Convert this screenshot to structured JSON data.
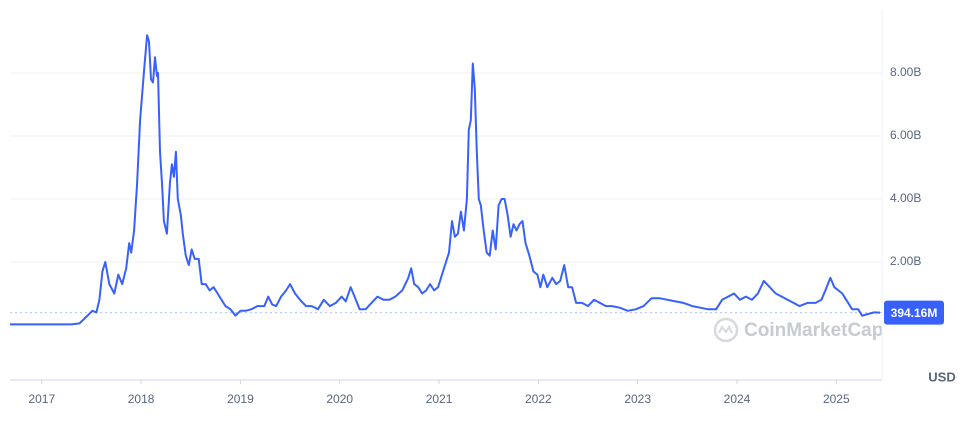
{
  "chart_data": {
    "type": "line",
    "x": [
      2016.68,
      2017.0,
      2017.3,
      2017.38,
      2017.46,
      2017.51,
      2017.55,
      2017.58,
      2017.61,
      2017.64,
      2017.68,
      2017.73,
      2017.77,
      2017.81,
      2017.85,
      2017.88,
      2017.9,
      2017.93,
      2017.96,
      2017.99,
      2018.03,
      2018.06,
      2018.08,
      2018.1,
      2018.12,
      2018.14,
      2018.16,
      2018.17,
      2018.19,
      2018.21,
      2018.23,
      2018.26,
      2018.29,
      2018.31,
      2018.33,
      2018.35,
      2018.37,
      2018.4,
      2018.42,
      2018.45,
      2018.48,
      2018.51,
      2018.54,
      2018.58,
      2018.61,
      2018.65,
      2018.69,
      2018.73,
      2018.77,
      2018.81,
      2018.85,
      2018.9,
      2018.95,
      2019.0,
      2019.05,
      2019.11,
      2019.17,
      2019.24,
      2019.28,
      2019.32,
      2019.36,
      2019.41,
      2019.46,
      2019.5,
      2019.55,
      2019.6,
      2019.66,
      2019.72,
      2019.78,
      2019.84,
      2019.9,
      2019.96,
      2020.02,
      2020.06,
      2020.11,
      2020.15,
      2020.2,
      2020.26,
      2020.32,
      2020.38,
      2020.44,
      2020.5,
      2020.56,
      2020.63,
      2020.69,
      2020.72,
      2020.75,
      2020.79,
      2020.83,
      2020.87,
      2020.91,
      2020.95,
      2020.99,
      2021.03,
      2021.07,
      2021.1,
      2021.13,
      2021.16,
      2021.19,
      2021.22,
      2021.25,
      2021.28,
      2021.3,
      2021.32,
      2021.34,
      2021.36,
      2021.38,
      2021.4,
      2021.42,
      2021.45,
      2021.48,
      2021.51,
      2021.54,
      2021.57,
      2021.6,
      2021.63,
      2021.66,
      2021.69,
      2021.72,
      2021.75,
      2021.78,
      2021.81,
      2021.84,
      2021.87,
      2021.91,
      2021.95,
      2021.99,
      2022.02,
      2022.05,
      2022.09,
      2022.14,
      2022.18,
      2022.22,
      2022.26,
      2022.3,
      2022.34,
      2022.38,
      2022.44,
      2022.5,
      2022.56,
      2022.62,
      2022.68,
      2022.74,
      2022.82,
      2022.9,
      2022.98,
      2023.06,
      2023.14,
      2023.22,
      2023.3,
      2023.38,
      2023.46,
      2023.55,
      2023.63,
      2023.71,
      2023.79,
      2023.85,
      2023.91,
      2023.97,
      2024.03,
      2024.09,
      2024.15,
      2024.21,
      2024.27,
      2024.33,
      2024.39,
      2024.45,
      2024.51,
      2024.57,
      2024.63,
      2024.71,
      2024.79,
      2024.85,
      2024.89,
      2024.94,
      2024.98,
      2025.02,
      2025.06,
      2025.1,
      2025.16,
      2025.22,
      2025.26,
      2025.32,
      2025.38,
      2025.44
    ],
    "series": [
      {
        "color": "#3861fb",
        "values": [
          0.02,
          0.02,
          0.02,
          0.05,
          0.3,
          0.45,
          0.4,
          0.8,
          1.7,
          2.0,
          1.3,
          1.0,
          1.6,
          1.3,
          1.8,
          2.6,
          2.3,
          3.0,
          4.5,
          6.5,
          8.1,
          9.2,
          9.0,
          7.8,
          7.7,
          8.5,
          7.9,
          8.0,
          5.5,
          4.5,
          3.3,
          2.9,
          4.5,
          5.1,
          4.7,
          5.5,
          4.0,
          3.5,
          2.9,
          2.2,
          1.9,
          2.4,
          2.1,
          2.1,
          1.3,
          1.3,
          1.1,
          1.2,
          1.0,
          0.8,
          0.6,
          0.5,
          0.3,
          0.45,
          0.45,
          0.5,
          0.6,
          0.6,
          0.9,
          0.65,
          0.6,
          0.9,
          1.1,
          1.3,
          1.0,
          0.8,
          0.6,
          0.6,
          0.5,
          0.8,
          0.6,
          0.7,
          0.9,
          0.75,
          1.2,
          0.9,
          0.5,
          0.5,
          0.7,
          0.9,
          0.8,
          0.8,
          0.9,
          1.1,
          1.5,
          1.8,
          1.3,
          1.2,
          1.0,
          1.1,
          1.3,
          1.1,
          1.2,
          1.6,
          2.0,
          2.3,
          3.3,
          2.8,
          2.9,
          3.6,
          3.0,
          4.0,
          6.2,
          6.5,
          8.3,
          7.5,
          5.5,
          4.0,
          3.8,
          3.0,
          2.3,
          2.2,
          3.0,
          2.4,
          3.8,
          4.0,
          4.0,
          3.5,
          2.8,
          3.2,
          3.0,
          3.2,
          3.3,
          2.6,
          2.2,
          1.7,
          1.6,
          1.2,
          1.6,
          1.2,
          1.5,
          1.3,
          1.4,
          1.9,
          1.2,
          1.2,
          0.7,
          0.7,
          0.6,
          0.8,
          0.7,
          0.6,
          0.6,
          0.55,
          0.45,
          0.5,
          0.6,
          0.85,
          0.85,
          0.8,
          0.75,
          0.7,
          0.6,
          0.55,
          0.5,
          0.5,
          0.8,
          0.9,
          1.0,
          0.8,
          0.9,
          0.8,
          1.0,
          1.4,
          1.2,
          1.0,
          0.9,
          0.8,
          0.7,
          0.6,
          0.7,
          0.7,
          0.8,
          1.1,
          1.5,
          1.2,
          1.1,
          1.0,
          0.8,
          0.5,
          0.5,
          0.3,
          0.35,
          0.4,
          0.39416
        ]
      }
    ],
    "xlim": [
      2016.68,
      2025.46
    ],
    "xticks": [
      2017,
      2018,
      2019,
      2020,
      2021,
      2022,
      2023,
      2024,
      2025
    ],
    "ylim": [
      0,
      10
    ],
    "yticks": [
      {
        "value": 2,
        "label": "2.00B"
      },
      {
        "value": 4,
        "label": "4.00B"
      },
      {
        "value": 6,
        "label": "6.00B"
      },
      {
        "value": 8,
        "label": "8.00B"
      }
    ],
    "grid": true,
    "price_marker": {
      "value": 0.39416,
      "label": "394.16M",
      "color": "#3861fb"
    },
    "currency": "USD",
    "watermark": "CoinMarketCap"
  }
}
